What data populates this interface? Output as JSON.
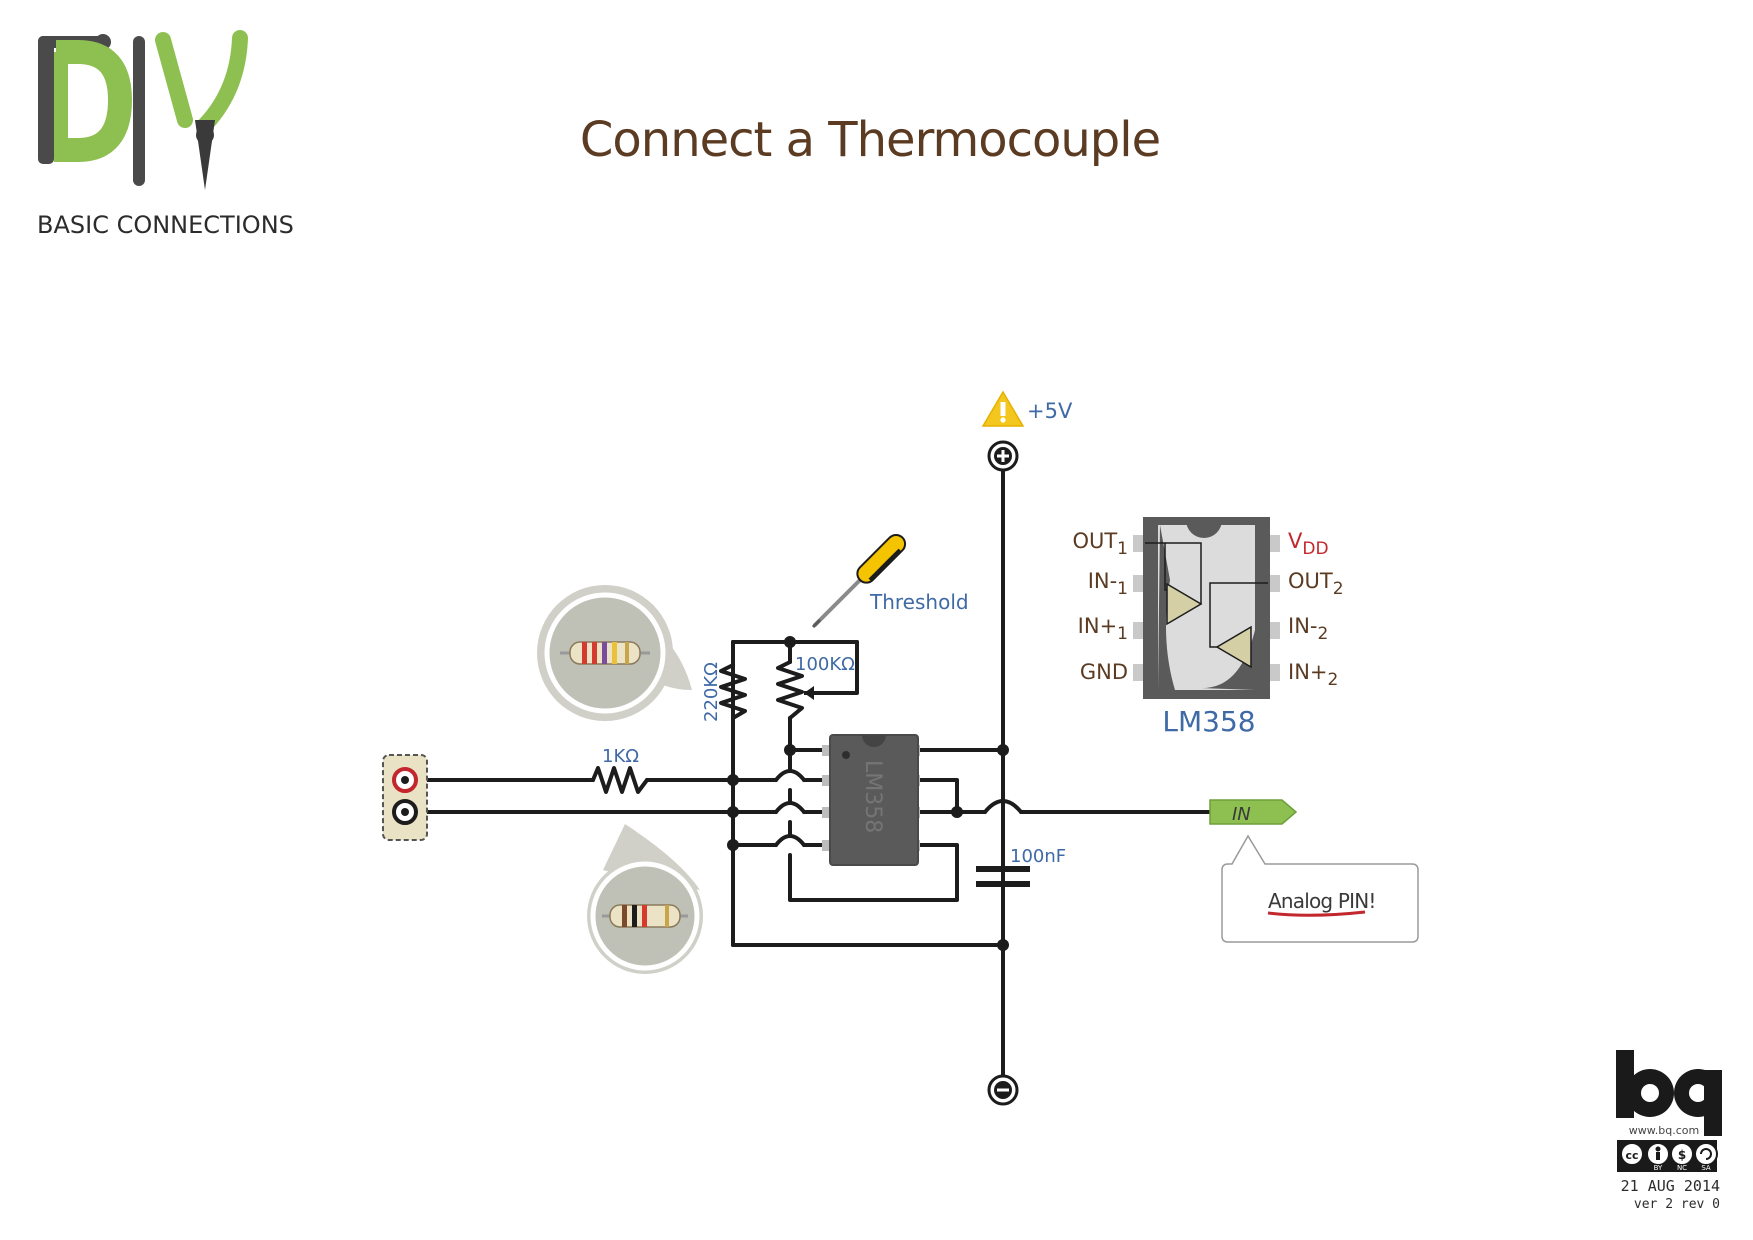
{
  "header": {
    "brand_small": "BASIC CONNECTIONS",
    "title": "Connect a Thermocouple"
  },
  "components": {
    "supply_label": "+5V",
    "threshold_label": "Threshold",
    "resistor_1k": "1KΩ",
    "resistor_220k": "220KΩ",
    "pot_100k": "100KΩ",
    "capacitor": "100nF",
    "chip_body_text": "LM358",
    "output_label": "IN",
    "callout_text": "Analog PIN!"
  },
  "pinout": {
    "chip_name": "LM358",
    "left_pins": [
      {
        "base": "OUT",
        "sub": "1"
      },
      {
        "base": "IN-",
        "sub": "1"
      },
      {
        "base": "IN+",
        "sub": "1"
      },
      {
        "base": "GND",
        "sub": ""
      }
    ],
    "right_pins": [
      {
        "base": "V",
        "sub": "DD"
      },
      {
        "base": "OUT",
        "sub": "2"
      },
      {
        "base": "IN-",
        "sub": "2"
      },
      {
        "base": "IN+",
        "sub": "2"
      }
    ]
  },
  "footer": {
    "website": "www.bq.com",
    "license_tags": [
      "BY",
      "NC",
      "SA"
    ],
    "date": "21 AUG 2014",
    "version": "ver 2 rev 0"
  },
  "colors": {
    "accent_green": "#8dc051",
    "title_brown": "#5b3b22",
    "label_blue": "#3f6aa6",
    "warning_yellow": "#f3c71d",
    "chip_gray": "#5a5a5a"
  }
}
